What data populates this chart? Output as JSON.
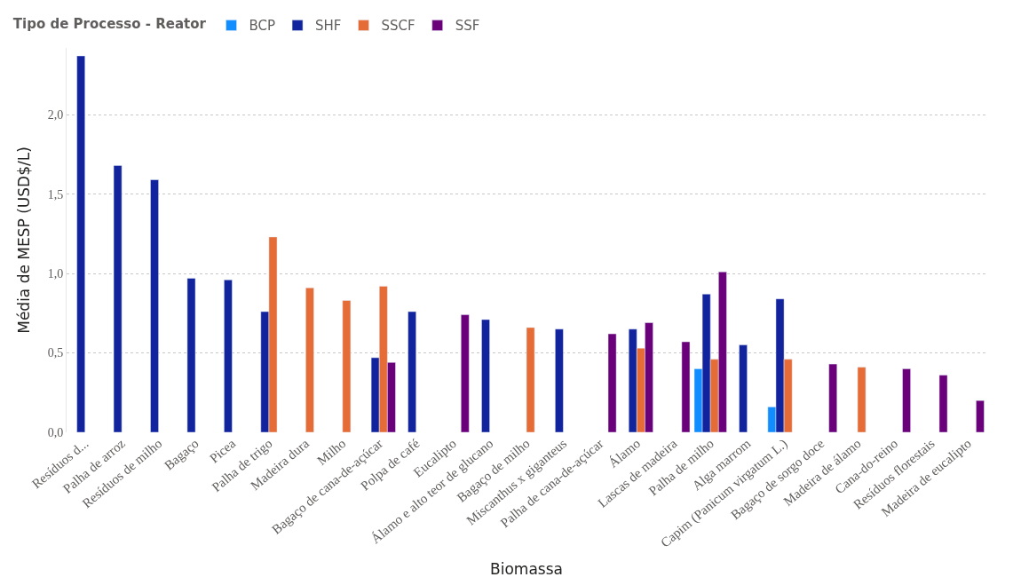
{
  "chart_data": {
    "type": "bar",
    "xlabel": "Biomassa",
    "ylabel": "Média de MESP (USD$/L)",
    "legend_title": "Tipo de Processo - Reator",
    "legend": "top left",
    "grid": "y",
    "categories": [
      "Resíduos d...",
      "Palha de arroz",
      "Resíduos de milho",
      "Bagaço",
      "Picea",
      "Palha de trigo",
      "Madeira dura",
      "Milho",
      "Bagaço de cana-de-açúcar",
      "Polpa de café",
      "Eucalipto",
      "Álamo e alto teor de glucano",
      "Bagaço de milho",
      "Miscanthus x giganteus",
      "Palha de cana-de-açúcar",
      "Álamo",
      "Lascas de madeira",
      "Palha de milho",
      "Alga marrom",
      "Capim (Panicum virgatum L.)",
      "Bagaço de sorgo doce",
      "Madeira de álamo",
      "Cana-do-reino",
      "Resíduos florestais",
      "Madeira de eucalipto"
    ],
    "ylim": [
      0,
      2.42
    ],
    "yticks": [
      {
        "value": 0,
        "label": "0,0"
      },
      {
        "value": 0.5,
        "label": "0,5"
      },
      {
        "value": 1,
        "label": "1,0"
      },
      {
        "value": 1.5,
        "label": "1,5"
      },
      {
        "value": 2,
        "label": "2,0"
      }
    ],
    "series": [
      {
        "name": "BCP",
        "color": "#118dff",
        "values": [
          null,
          null,
          null,
          null,
          null,
          null,
          null,
          null,
          null,
          null,
          null,
          null,
          null,
          null,
          null,
          null,
          null,
          0.4,
          null,
          0.16,
          null,
          null,
          null,
          null,
          null
        ]
      },
      {
        "name": "SHF",
        "color": "#12239e",
        "values": [
          2.37,
          1.68,
          1.59,
          0.97,
          0.96,
          0.76,
          null,
          null,
          0.47,
          0.76,
          null,
          0.71,
          null,
          0.65,
          null,
          0.65,
          null,
          0.87,
          0.55,
          0.84,
          null,
          null,
          null,
          null,
          null
        ]
      },
      {
        "name": "SSCF",
        "color": "#e66c37",
        "values": [
          null,
          null,
          null,
          null,
          null,
          1.23,
          0.91,
          0.83,
          0.92,
          null,
          null,
          null,
          0.66,
          null,
          null,
          0.53,
          null,
          0.46,
          null,
          0.46,
          null,
          0.41,
          null,
          null,
          null
        ]
      },
      {
        "name": "SSF",
        "color": "#6b007b",
        "values": [
          null,
          null,
          null,
          null,
          null,
          null,
          null,
          null,
          0.44,
          null,
          0.74,
          null,
          null,
          null,
          0.62,
          0.69,
          0.57,
          1.01,
          null,
          null,
          0.43,
          null,
          0.4,
          0.36,
          0.2
        ]
      }
    ]
  }
}
